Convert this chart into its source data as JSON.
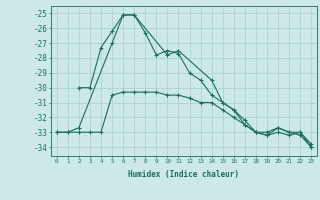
{
  "xlabel": "Humidex (Indice chaleur)",
  "background_color": "#cce8e8",
  "grid_color": "#aacece",
  "line_color": "#1a6e5e",
  "xlim": [
    -0.5,
    23.5
  ],
  "ylim": [
    -34.6,
    -24.5
  ],
  "yticks": [
    -25,
    -26,
    -27,
    -28,
    -29,
    -30,
    -31,
    -32,
    -33,
    -34
  ],
  "xticks": [
    0,
    1,
    2,
    3,
    4,
    5,
    6,
    7,
    8,
    9,
    10,
    11,
    12,
    13,
    14,
    15,
    16,
    17,
    18,
    19,
    20,
    21,
    22,
    23
  ],
  "series": [
    {
      "x": [
        0,
        1,
        2,
        5,
        6,
        7,
        10,
        11,
        14,
        15,
        16,
        17,
        18,
        19,
        20,
        21,
        22,
        23
      ],
      "y": [
        -33,
        -33,
        -32.7,
        -27,
        -25.1,
        -25.1,
        -27.8,
        -27.5,
        -29.5,
        -31,
        -31.5,
        -32.2,
        -33,
        -33.2,
        -32.7,
        -33,
        -33,
        -34
      ]
    },
    {
      "x": [
        2,
        3,
        4,
        5,
        6,
        7,
        8,
        9,
        10,
        11,
        12,
        13,
        14,
        15,
        16,
        17,
        18,
        19,
        20,
        21,
        22,
        23
      ],
      "y": [
        -30,
        -30,
        -27.3,
        -26.2,
        -25.1,
        -25.1,
        -26.3,
        -27.8,
        -27.5,
        -27.7,
        -29,
        -29.5,
        -30.5,
        -31,
        -31.5,
        -32.5,
        -33,
        -33.2,
        -33,
        -33.2,
        -33,
        -33.8
      ]
    },
    {
      "x": [
        0,
        1,
        2,
        3,
        4,
        5,
        6,
        7,
        8,
        9,
        10,
        11,
        12,
        13,
        14,
        15,
        16,
        17,
        18,
        19,
        20,
        21,
        22,
        23
      ],
      "y": [
        -33,
        -33,
        -33,
        -33,
        -33,
        -30.5,
        -30.3,
        -30.3,
        -30.3,
        -30.3,
        -30.5,
        -30.5,
        -30.7,
        -31,
        -31,
        -31.5,
        -32,
        -32.5,
        -33,
        -33,
        -32.7,
        -33,
        -33.2,
        -34
      ]
    }
  ]
}
